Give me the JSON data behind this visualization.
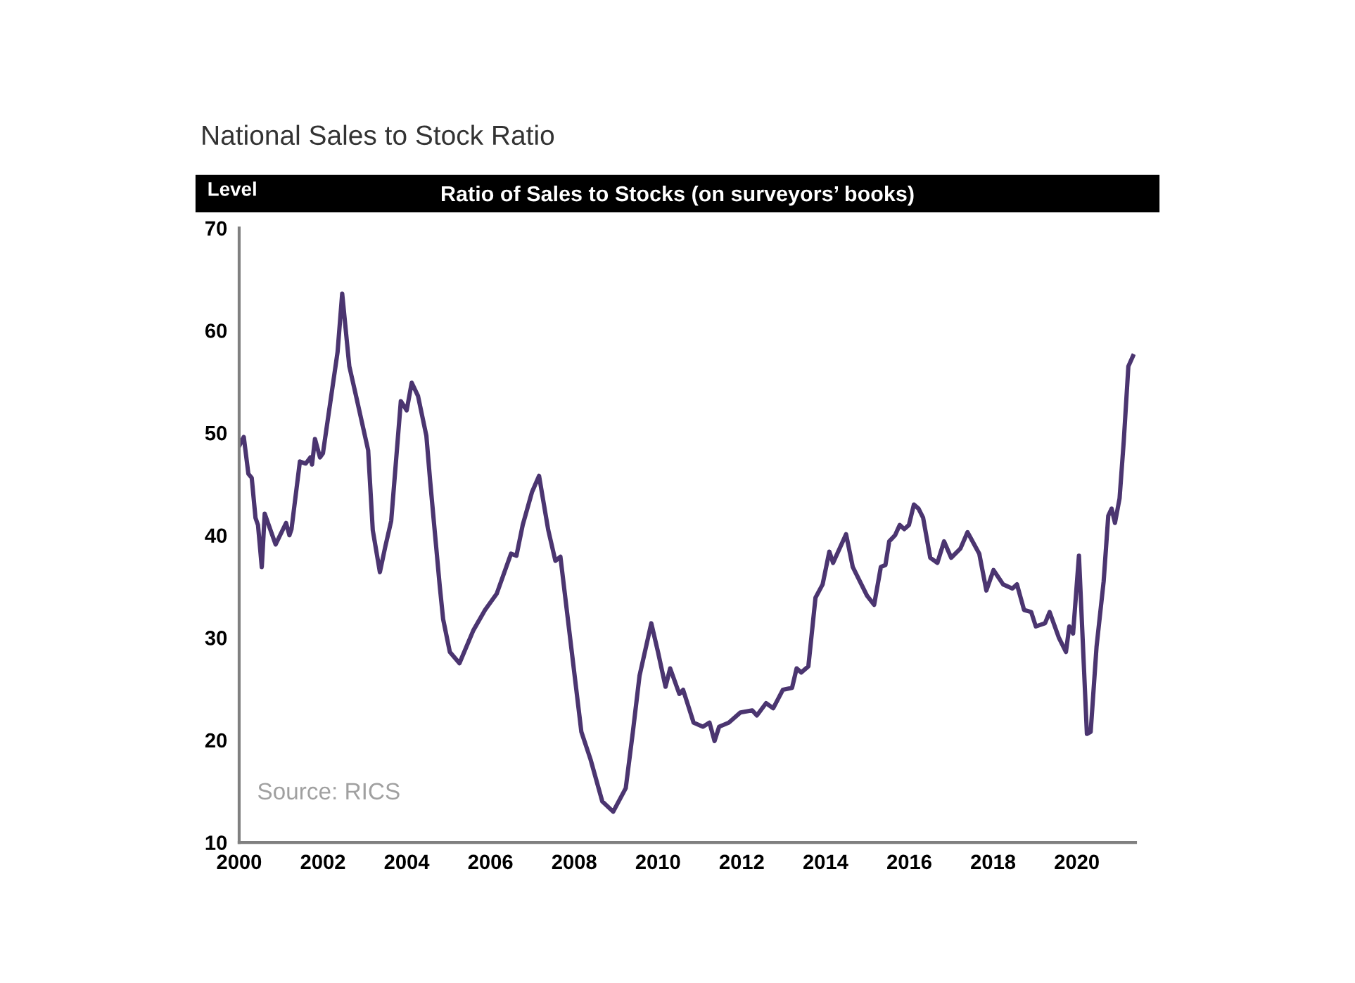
{
  "chart_data": {
    "type": "line",
    "title": "National Sales to Stock Ratio",
    "subtitle": "Ratio of Sales to Stocks (on surveyors’ books)",
    "ylabel": "Level",
    "annotations": [
      "Source: RICS"
    ],
    "series": [
      {
        "color": "#4b3570",
        "x": [
          2000.0,
          2000.11,
          2000.22,
          2000.3,
          2000.39,
          2000.45,
          2000.54,
          2000.61,
          2000.87,
          2001.12,
          2001.2,
          2001.25,
          2001.45,
          2001.59,
          2001.7,
          2001.74,
          2001.81,
          2001.93,
          2002.0,
          2002.35,
          2002.46,
          2002.63,
          2002.78,
          2003.08,
          2003.19,
          2003.36,
          2003.49,
          2003.63,
          2003.86,
          2004.0,
          2004.12,
          2004.27,
          2004.47,
          2004.56,
          2004.79,
          2004.87,
          2005.03,
          2005.26,
          2005.59,
          2005.87,
          2006.15,
          2006.49,
          2006.62,
          2006.77,
          2006.99,
          2007.16,
          2007.38,
          2007.55,
          2007.67,
          2008.17,
          2008.39,
          2008.67,
          2008.93,
          2009.23,
          2009.4,
          2009.56,
          2009.84,
          2010.0,
          2010.18,
          2010.29,
          2010.51,
          2010.6,
          2010.85,
          2011.07,
          2011.23,
          2011.35,
          2011.46,
          2011.69,
          2011.97,
          2012.25,
          2012.36,
          2012.58,
          2012.75,
          2012.98,
          2013.2,
          2013.31,
          2013.42,
          2013.59,
          2013.76,
          2013.93,
          2014.09,
          2014.18,
          2014.49,
          2014.65,
          2014.99,
          2015.16,
          2015.32,
          2015.43,
          2015.52,
          2015.66,
          2015.77,
          2015.88,
          2015.99,
          2016.11,
          2016.22,
          2016.33,
          2016.5,
          2016.67,
          2016.83,
          2017.0,
          2017.22,
          2017.39,
          2017.67,
          2017.84,
          2018.01,
          2018.24,
          2018.46,
          2018.57,
          2018.74,
          2018.91,
          2019.02,
          2019.24,
          2019.35,
          2019.57,
          2019.74,
          2019.82,
          2019.91,
          2020.05,
          2020.24,
          2020.33,
          2020.47,
          2020.64,
          2020.75,
          2020.83,
          2020.91,
          2021.02,
          2021.12,
          2021.23,
          2021.34
        ],
        "values": [
          48.7,
          49.6,
          46.0,
          45.6,
          41.7,
          41.0,
          36.9,
          42.1,
          39.1,
          41.2,
          40.0,
          40.6,
          47.2,
          47.0,
          47.6,
          46.9,
          49.4,
          47.6,
          48.0,
          57.9,
          63.6,
          56.5,
          53.8,
          48.3,
          40.5,
          36.4,
          38.9,
          41.4,
          53.1,
          52.2,
          54.9,
          53.6,
          49.7,
          45.3,
          35.0,
          31.8,
          28.6,
          27.5,
          30.7,
          32.7,
          34.3,
          38.2,
          38.0,
          41.0,
          44.2,
          45.8,
          40.5,
          37.5,
          37.9,
          20.8,
          18.1,
          14.0,
          13.0,
          15.3,
          20.8,
          26.3,
          31.4,
          28.6,
          25.2,
          27.0,
          24.5,
          24.9,
          21.7,
          21.3,
          21.7,
          19.9,
          21.3,
          21.7,
          22.7,
          22.9,
          22.4,
          23.6,
          23.1,
          24.9,
          25.1,
          27.0,
          26.6,
          27.2,
          33.9,
          35.2,
          38.4,
          37.3,
          40.1,
          36.9,
          34.1,
          33.2,
          36.9,
          37.1,
          39.4,
          40.0,
          41.0,
          40.6,
          41.0,
          43.0,
          42.6,
          41.7,
          37.8,
          37.3,
          39.4,
          37.8,
          38.7,
          40.3,
          38.2,
          34.6,
          36.6,
          35.2,
          34.8,
          35.2,
          32.7,
          32.5,
          31.1,
          31.4,
          32.5,
          30.0,
          28.6,
          31.1,
          30.4,
          38.0,
          20.6,
          20.8,
          29.1,
          35.5,
          41.9,
          42.6,
          41.2,
          43.6,
          49.2,
          56.5,
          57.5
        ]
      }
    ],
    "xlim": [
      2000,
      2021.4
    ],
    "xticks": [
      2000,
      2002,
      2004,
      2006,
      2008,
      2010,
      2012,
      2014,
      2016,
      2018,
      2020
    ],
    "ylim": [
      10,
      70
    ],
    "yticks": [
      10,
      20,
      30,
      40,
      50,
      60,
      70
    ],
    "grid": false,
    "marker": "none",
    "line_style": "solid"
  }
}
